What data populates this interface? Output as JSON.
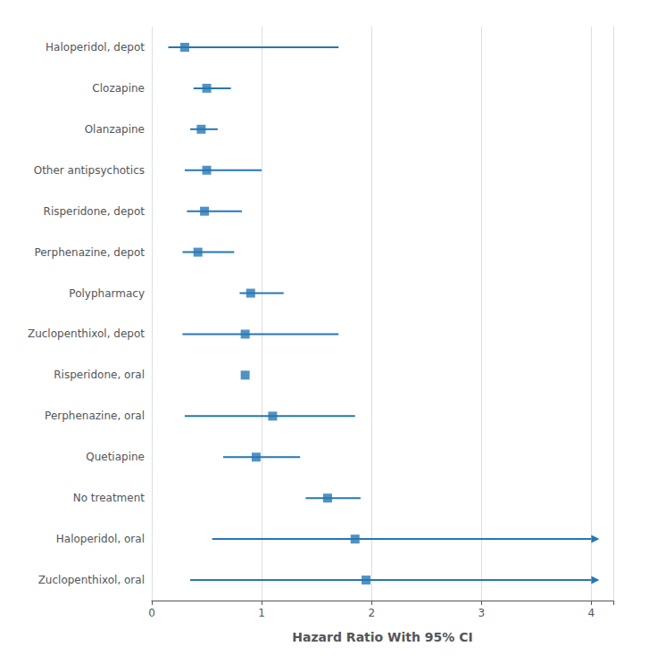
{
  "chart_data": {
    "type": "forest",
    "orientation": "horizontal",
    "categories": [
      "Haloperidol, depot",
      "Clozapine",
      "Olanzapine",
      "Other antipsychotics",
      "Risperidone, depot",
      "Perphenazine, depot",
      "Polypharmacy",
      "Zuclopenthixol, depot",
      "Risperidone, oral",
      "Perphenazine, oral",
      "Quetiapine",
      "No treatment",
      "Haloperidol, oral",
      "Zuclopenthixol, oral"
    ],
    "values": [
      0.3,
      0.5,
      0.45,
      0.5,
      0.48,
      0.42,
      0.9,
      0.85,
      0.85,
      1.1,
      0.95,
      1.6,
      1.85,
      1.95
    ],
    "ci_lower": [
      0.15,
      0.38,
      0.35,
      0.3,
      0.32,
      0.28,
      0.8,
      0.28,
      0.85,
      0.3,
      0.65,
      1.4,
      0.55,
      0.35
    ],
    "ci_upper": [
      1.7,
      0.72,
      0.6,
      1.0,
      0.82,
      0.75,
      1.2,
      1.7,
      0.85,
      1.85,
      1.35,
      1.9,
      4.0,
      4.0
    ],
    "arrow_upper": [
      false,
      false,
      false,
      false,
      false,
      false,
      false,
      false,
      false,
      false,
      false,
      false,
      true,
      true
    ],
    "color": "#2577b5",
    "xlabel": "Hazard Ratio With 95% CI",
    "xlim": [
      0,
      4.2
    ],
    "xticks": [
      0,
      1,
      2,
      3,
      4
    ],
    "grid": true
  }
}
